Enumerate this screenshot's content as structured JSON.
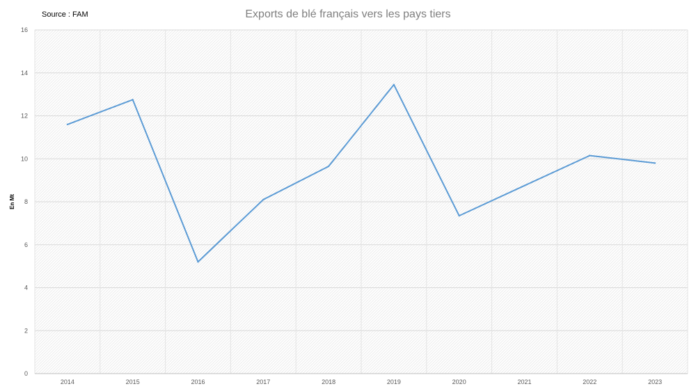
{
  "source_label": "Source : FAM",
  "chart_data": {
    "type": "line",
    "title": "Exports de blé français vers les pays tiers",
    "xlabel": "",
    "ylabel": "En Mt",
    "categories": [
      "2014",
      "2015",
      "2016",
      "2017",
      "2018",
      "2019",
      "2020",
      "2021",
      "2022",
      "2023"
    ],
    "series": [
      {
        "values": [
          11.6,
          12.75,
          5.2,
          8.1,
          9.65,
          13.45,
          7.35,
          8.75,
          10.15,
          9.8
        ],
        "color": "#5b9bd5"
      }
    ],
    "yticks": [
      "0",
      "2",
      "4",
      "6",
      "8",
      "10",
      "12",
      "14",
      "16"
    ],
    "ylim": [
      0,
      16
    ],
    "grid": true,
    "legend": "none"
  }
}
